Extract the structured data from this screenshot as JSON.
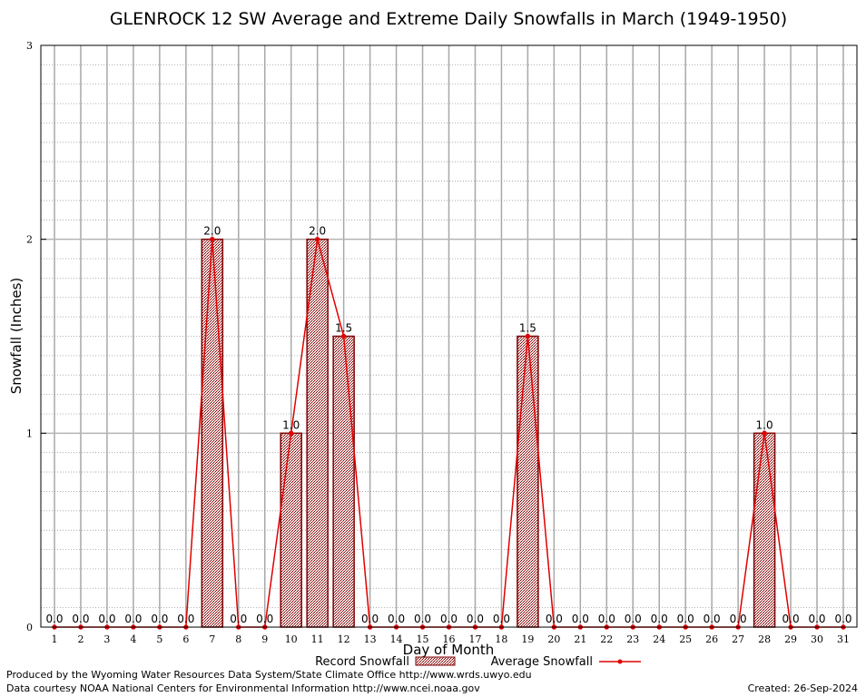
{
  "chart_data": {
    "type": "bar",
    "title": "GLENROCK 12 SW Average and Extreme Daily Snowfalls in March (1949-1950)",
    "xlabel": "Day of Month",
    "ylabel": "Snowfall (Inches)",
    "ylim": [
      0,
      3
    ],
    "yticks": [
      "0",
      "1",
      "2",
      "3"
    ],
    "categories": [
      "1",
      "2",
      "3",
      "4",
      "5",
      "6",
      "7",
      "8",
      "9",
      "10",
      "11",
      "12",
      "13",
      "14",
      "15",
      "16",
      "17",
      "18",
      "19",
      "20",
      "21",
      "22",
      "23",
      "24",
      "25",
      "26",
      "27",
      "28",
      "29",
      "30",
      "31"
    ],
    "series": [
      {
        "name": "Record Snowfall",
        "type": "bar",
        "values": [
          0,
          0,
          0,
          0,
          0,
          0,
          2.0,
          0,
          0,
          1.0,
          2.0,
          1.5,
          0,
          0,
          0,
          0,
          0,
          0,
          1.5,
          0,
          0,
          0,
          0,
          0,
          0,
          0,
          0,
          1.0,
          0,
          0,
          0
        ],
        "labels": [
          "0.0",
          "0.0",
          "0.0",
          "0.0",
          "0.0",
          "0.0",
          "2.0",
          "0.0",
          "0.0",
          "1.0",
          "2.0",
          "1.5",
          "0.0",
          "0.0",
          "0.0",
          "0.0",
          "0.0",
          "0.0",
          "1.5",
          "0.0",
          "0.0",
          "0.0",
          "0.0",
          "0.0",
          "0.0",
          "0.0",
          "0.0",
          "1.0",
          "0.0",
          "0.0",
          "0.0"
        ]
      },
      {
        "name": "Average Snowfall",
        "type": "line",
        "values": [
          0,
          0,
          0,
          0,
          0,
          0,
          2.0,
          0,
          0,
          1.0,
          2.0,
          1.5,
          0,
          0,
          0,
          0,
          0,
          0,
          1.5,
          0,
          0,
          0,
          0,
          0,
          0,
          0,
          0,
          1.0,
          0,
          0,
          0
        ]
      }
    ],
    "grid": true,
    "legend_position": "bottom-center",
    "colors": {
      "bar_fill": "#b08080",
      "bar_edge": "#800000",
      "line": "#e00000"
    }
  },
  "footer": {
    "produced_by": "Produced by the Wyoming Water Resources Data System/State Climate Office http://www.wrds.uwyo.edu",
    "data_courtesy": "Data courtesy NOAA National Centers for Environmental Information http://www.ncei.noaa.gov",
    "created": "Created:  26-Sep-2024"
  }
}
